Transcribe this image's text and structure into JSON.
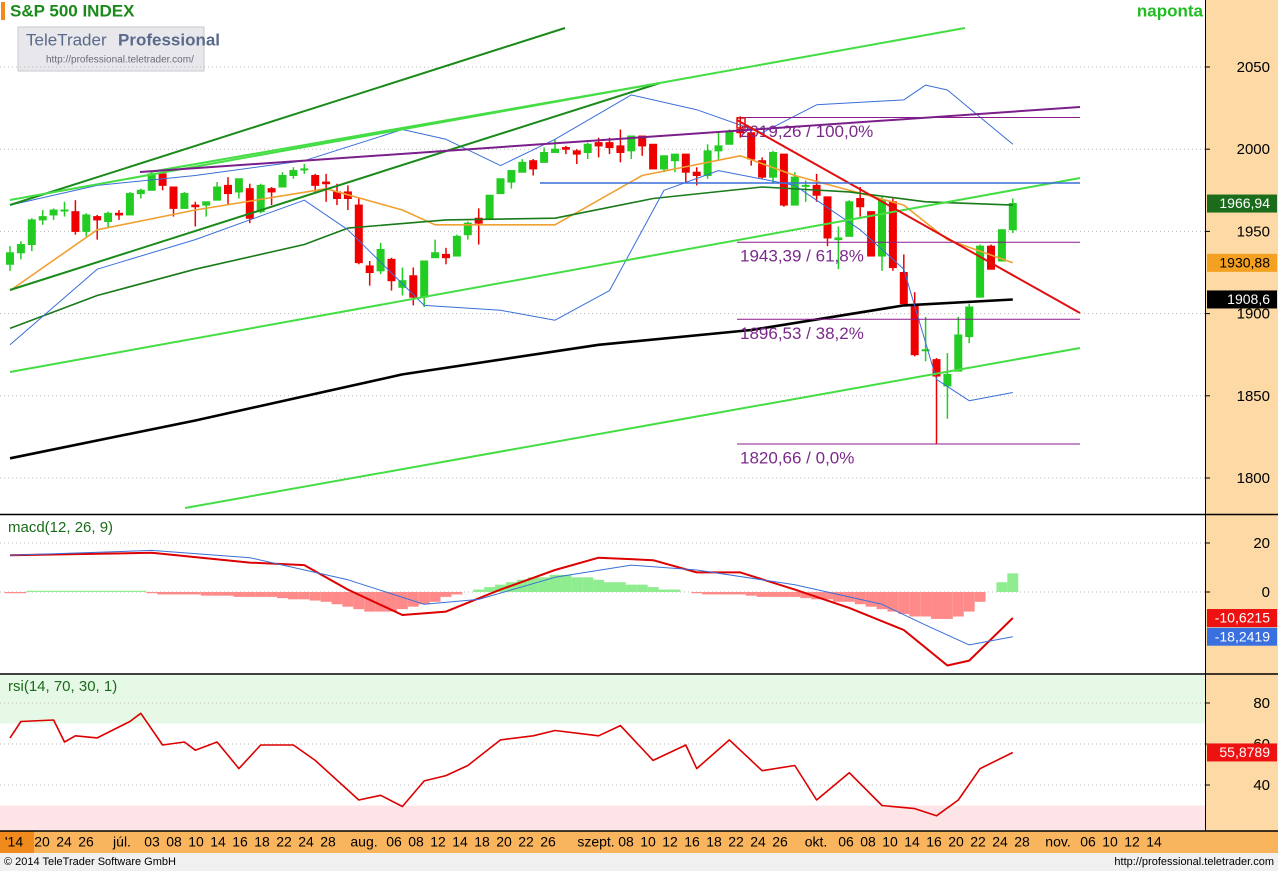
{
  "logo": {
    "brand": "TeleTrader",
    "product": "Professional",
    "url": "http://professional.teletrader.com/"
  },
  "footer": {
    "copyright": "© 2014 TeleTrader Software GmbH",
    "url": "http://professional.teletrader.com"
  },
  "chart_data": [
    {
      "type": "candlestick",
      "title": "S&P 500 INDEX",
      "subtitle": "naponta",
      "categories": [
        "06-16",
        "06-17",
        "06-18",
        "06-19",
        "06-20",
        "06-23",
        "06-24",
        "06-25",
        "06-26",
        "06-27",
        "06-30",
        "07-01",
        "07-02",
        "07-03",
        "07-07",
        "07-08",
        "07-09",
        "07-10",
        "07-11",
        "07-14",
        "07-15",
        "07-16",
        "07-17",
        "07-18",
        "07-21",
        "07-22",
        "07-23",
        "07-24",
        "07-25",
        "07-28",
        "07-29",
        "07-30",
        "07-31",
        "08-01",
        "08-04",
        "08-05",
        "08-06",
        "08-07",
        "08-08",
        "08-11",
        "08-12",
        "08-13",
        "08-14",
        "08-15",
        "08-18",
        "08-19",
        "08-20",
        "08-21",
        "08-22",
        "08-25",
        "08-26",
        "08-27",
        "08-28",
        "08-29",
        "09-02",
        "09-03",
        "09-04",
        "09-05",
        "09-08",
        "09-09",
        "09-10",
        "09-11",
        "09-12",
        "09-15",
        "09-16",
        "09-17",
        "09-18",
        "09-19",
        "09-22",
        "09-23",
        "09-24",
        "09-25",
        "09-26",
        "09-29",
        "09-30",
        "10-01",
        "10-02",
        "10-03",
        "10-06",
        "10-07",
        "10-08",
        "10-09",
        "10-10",
        "10-13",
        "10-14",
        "10-15",
        "10-16",
        "10-17",
        "10-20",
        "10-21",
        "10-22",
        "10-23",
        "10-24"
      ],
      "open": [
        1930,
        1937,
        1942,
        1957,
        1960,
        1963,
        1962,
        1950,
        1959,
        1956,
        1961,
        1960,
        1973,
        1975,
        1985,
        1977,
        1964,
        1966,
        1966,
        1969,
        1978,
        1974,
        1976,
        1962,
        1976,
        1977,
        1984,
        1988,
        1984,
        1980,
        1974,
        1974,
        1966,
        1929,
        1926,
        1933,
        1916,
        1923,
        1910,
        1934,
        1936,
        1935,
        1948,
        1958,
        1958,
        1973,
        1980,
        1986,
        1993,
        1992,
        1998,
        2001,
        1999,
        1998,
        2004,
        2004,
        2002,
        1999,
        2008,
        2003,
        1988,
        1993,
        1997,
        1986,
        1984,
        1999,
        2003,
        2012,
        2010,
        1993,
        1983,
        1997,
        1966,
        1978,
        1978,
        1971,
        1945,
        1947,
        1970,
        1962,
        1935,
        1968,
        1925,
        1905,
        1878,
        1872,
        1856,
        1865,
        1886,
        1910,
        1941,
        1932,
        1951
      ],
      "high": [
        1941,
        1944,
        1958,
        1963,
        1964,
        1968,
        1969,
        1961,
        1960,
        1962,
        1963,
        1974,
        1976,
        1986,
        1986,
        1977,
        1974,
        1968,
        1968,
        1980,
        1983,
        1982,
        1979,
        1979,
        1977,
        1986,
        1989,
        1991,
        1985,
        1985,
        1979,
        1978,
        1970,
        1932,
        1943,
        1934,
        1928,
        1928,
        1932,
        1945,
        1940,
        1948,
        1956,
        1964,
        1972,
        1982,
        1987,
        1994,
        1994,
        2001,
        2006,
        2002,
        2000,
        2004,
        2007,
        2007,
        2012,
        2008,
        2008,
        2003,
        1996,
        1997,
        1997,
        1989,
        2003,
        2011,
        2012,
        2020,
        2010,
        1995,
        1999,
        1997,
        1986,
        1981,
        1985,
        1971,
        1953,
        1969,
        1977,
        1962,
        1971,
        1970,
        1936,
        1913,
        1898,
        1873,
        1876,
        1898,
        1906,
        1942,
        1942,
        1951,
        1970
      ],
      "low": [
        1926,
        1933,
        1938,
        1954,
        1957,
        1959,
        1948,
        1947,
        1945,
        1952,
        1957,
        1960,
        1970,
        1975,
        1975,
        1959,
        1964,
        1953,
        1959,
        1969,
        1966,
        1970,
        1955,
        1961,
        1966,
        1977,
        1982,
        1985,
        1974,
        1968,
        1966,
        1963,
        1930,
        1917,
        1924,
        1914,
        1911,
        1905,
        1904,
        1934,
        1930,
        1935,
        1945,
        1942,
        1958,
        1973,
        1976,
        1986,
        1984,
        1992,
        1998,
        1997,
        1991,
        1994,
        1995,
        1997,
        1992,
        1994,
        1996,
        1988,
        1986,
        1986,
        1980,
        1978,
        1982,
        1993,
        2003,
        2007,
        1990,
        1982,
        1979,
        1965,
        1966,
        1968,
        1968,
        1941,
        1927,
        1947,
        1959,
        1935,
        1926,
        1926,
        1906,
        1874,
        1871,
        1820.66,
        1836,
        1865,
        1882,
        1910,
        1927,
        1932,
        1949
      ],
      "close": [
        1937,
        1942,
        1957,
        1959,
        1963,
        1963,
        1950,
        1960,
        1957,
        1961,
        1960,
        1973,
        1975,
        1985,
        1978,
        1964,
        1973,
        1965,
        1968,
        1977,
        1973,
        1982,
        1958,
        1978,
        1974,
        1984,
        1987,
        1988,
        1978,
        1979,
        1970,
        1970,
        1931,
        1925,
        1939,
        1920,
        1920,
        1910,
        1932,
        1937,
        1934,
        1947,
        1955,
        1955,
        1972,
        1982,
        1987,
        1992,
        1988,
        1998,
        2000,
        2000,
        1997,
        2003,
        2002,
        2001,
        1998,
        2008,
        2002,
        1988,
        1996,
        1997,
        1986,
        1984,
        1999,
        2002,
        2011,
        2010,
        1994,
        1983,
        1998,
        1966,
        1983,
        1978,
        1972,
        1946,
        1946,
        1968,
        1965,
        1935,
        1969,
        1928,
        1906,
        1875,
        1878,
        1862,
        1863,
        1887,
        1904,
        1941,
        1927,
        1951,
        1966.94
      ],
      "up_color": "#22cc22",
      "down_color": "#ee0000",
      "series": [
        {
          "color": "#f0a030",
          "width": 1.6,
          "x": [
            "06-16",
            "06-26",
            "07-10",
            "07-28",
            "08-06",
            "08-11",
            "08-26",
            "09-08",
            "09-19",
            "09-26",
            "10-10",
            "10-16",
            "10-24"
          ],
          "values": [
            1914,
            1951,
            1963,
            1976,
            1963,
            1954,
            1954,
            1984,
            1996,
            1984,
            1966,
            1945,
            1930.88
          ]
        },
        {
          "color": "#1a7a1a",
          "width": 1.6,
          "x": [
            "06-16",
            "06-26",
            "07-10",
            "07-24",
            "07-30",
            "08-12",
            "08-26",
            "09-09",
            "09-23",
            "10-03",
            "10-14",
            "10-24"
          ],
          "values": [
            1891,
            1911,
            1927,
            1942,
            1952,
            1957,
            1958,
            1970,
            1977,
            1974,
            1968,
            1966
          ]
        },
        {
          "color": "#000000",
          "width": 2.6,
          "x": [
            "06-16",
            "07-10",
            "08-06",
            "09-02",
            "09-22",
            "10-10",
            "10-24"
          ],
          "values": [
            1812,
            1835,
            1863,
            1881,
            1890,
            1905,
            1908.6
          ]
        },
        {
          "color": "#3a6fd8",
          "width": 1,
          "x": [
            "06-16",
            "06-26",
            "07-10",
            "07-24",
            "08-06",
            "08-12",
            "08-19",
            "08-26",
            "09-05",
            "09-15",
            "09-23",
            "09-30",
            "10-10",
            "10-14",
            "10-16",
            "10-24"
          ],
          "values": [
            1966,
            1978,
            1984,
            1993,
            2012,
            2006,
            1990,
            2006,
            2033,
            2024,
            2010,
            2027,
            2030,
            2039,
            2036,
            2003
          ]
        },
        {
          "color": "#3a6fd8",
          "width": 1,
          "x": [
            "06-16",
            "06-26",
            "07-10",
            "07-24",
            "07-30",
            "08-08",
            "08-19",
            "08-26",
            "09-03",
            "09-10",
            "09-17",
            "09-26",
            "10-06",
            "10-10",
            "10-15",
            "10-20",
            "10-24"
          ],
          "values": [
            1881,
            1927,
            1945,
            1969,
            1951,
            1905,
            1902,
            1896,
            1914,
            1975,
            1987,
            1978,
            1951,
            1927,
            1860,
            1847,
            1852
          ]
        }
      ],
      "fib_levels": [
        {
          "value": 2019.26,
          "label": "2019,26 / 100,0%"
        },
        {
          "value": 1943.39,
          "label": "1943,39 / 61,8%"
        },
        {
          "value": 1896.53,
          "label": "1896,53 / 38,2%"
        },
        {
          "value": 1820.66,
          "label": "1820,66 / 0,0%"
        }
      ],
      "value_boxes": [
        {
          "value": 1966.94,
          "label": "1966,94",
          "color": "#1a6b1a",
          "text_color": "#ffffff"
        },
        {
          "value": 1930.88,
          "label": "1930,88",
          "color": "#f4a020",
          "text_color": "#000000"
        },
        {
          "value": 1908.6,
          "label": "1908,6",
          "color": "#000000",
          "text_color": "#ffffff"
        }
      ],
      "ylim": [
        1778.71,
        2090.75
      ],
      "yticks": [
        1800,
        1850,
        1900,
        1950,
        2000,
        2050
      ],
      "grid": true,
      "x_labels": [
        "'14",
        "20",
        "24",
        "26",
        "júl.",
        "03",
        "08",
        "10",
        "14",
        "16",
        "18",
        "22",
        "24",
        "28",
        "aug.",
        "06",
        "08",
        "12",
        "14",
        "18",
        "20",
        "22",
        "26",
        "szept.",
        "08",
        "10",
        "12",
        "16",
        "18",
        "22",
        "24",
        "26",
        "okt.",
        "06",
        "08",
        "10",
        "14",
        "16",
        "20",
        "22",
        "24",
        "28",
        "nov.",
        "06",
        "10",
        "12",
        "14"
      ]
    },
    {
      "type": "macd",
      "title": "macd(12, 26, 9)",
      "histogram": {
        "positive_color": "#8fec8f",
        "negative_color": "#ff8a8a",
        "values": [
          -0.5,
          -0.5,
          0.5,
          0.5,
          0.5,
          0.5,
          0.5,
          0.5,
          0.5,
          0.5,
          0.5,
          0.5,
          0.5,
          -0.5,
          -1,
          -1,
          -1,
          -1,
          -1.5,
          -1.5,
          -1.5,
          -2,
          -2,
          -2,
          -2,
          -2.5,
          -3,
          -3,
          -3.5,
          -4,
          -5,
          -6,
          -7,
          -8,
          -8,
          -8,
          -7,
          -6,
          -5,
          -4,
          -2,
          -1,
          0,
          1,
          2,
          3,
          4,
          5,
          6,
          6,
          7,
          7,
          6,
          6,
          5,
          4,
          4,
          3,
          3,
          2,
          1,
          1,
          0,
          -0.5,
          -1,
          -1,
          -1,
          -1,
          -1.5,
          -2,
          -2,
          -2,
          -2,
          -2.5,
          -3,
          -3,
          -4,
          -4,
          -5,
          -6,
          -7,
          -8,
          -9,
          -10,
          -10,
          -11,
          -11,
          -10,
          -8,
          -4,
          0,
          4,
          7.6
        ]
      },
      "series": [
        {
          "color": "#dd0000",
          "width": 2,
          "x": [
            "06-16",
            "07-03",
            "07-17",
            "07-24",
            "07-30",
            "08-06",
            "08-12",
            "08-19",
            "08-26",
            "09-02",
            "09-09",
            "09-15",
            "09-19",
            "09-26",
            "10-03",
            "10-10",
            "10-16",
            "10-20",
            "10-24"
          ],
          "values": [
            15,
            16,
            12,
            11,
            1,
            -9.4,
            -8,
            1,
            9,
            14,
            13,
            8,
            8,
            1,
            -6.5,
            -15.5,
            -30,
            -28,
            -10.6215
          ]
        },
        {
          "color": "#3a6fd8",
          "width": 1,
          "x": [
            "06-16",
            "07-03",
            "07-17",
            "07-30",
            "08-08",
            "08-15",
            "08-26",
            "09-05",
            "09-15",
            "09-26",
            "10-08",
            "10-14",
            "10-20",
            "10-24"
          ],
          "values": [
            15,
            17,
            14,
            5,
            -5,
            -3,
            6,
            11,
            9,
            3,
            -5,
            -13.5,
            -21.6,
            -18.2419
          ]
        }
      ],
      "value_boxes": [
        {
          "value": -10.6215,
          "label": "-10,6215",
          "color": "#ee1111",
          "text_color": "#ffffff"
        },
        {
          "value": -18.2419,
          "label": "-18,2419",
          "color": "#3a6fe0",
          "text_color": "#ffffff"
        }
      ],
      "ylim": [
        -32.65,
        31.02
      ],
      "yticks": [
        0,
        20
      ],
      "grid": true
    },
    {
      "type": "line",
      "title": "rsi(14, 70, 30, 1)",
      "overbought": 70,
      "oversold": 30,
      "series": [
        {
          "color": "#dd0000",
          "width": 1.6,
          "x": [
            "06-16",
            "06-17",
            "06-20",
            "06-23",
            "06-24",
            "06-26",
            "07-01",
            "07-02",
            "07-07",
            "07-09",
            "07-10",
            "07-14",
            "07-16",
            "07-18",
            "07-23",
            "07-25",
            "07-31",
            "08-04",
            "08-06",
            "08-08",
            "08-12",
            "08-14",
            "08-19",
            "08-22",
            "08-26",
            "09-02",
            "09-04",
            "09-09",
            "09-12",
            "09-15",
            "09-18",
            "09-23",
            "09-26",
            "09-30",
            "10-03",
            "10-08",
            "10-13",
            "10-15",
            "10-17",
            "10-21",
            "10-24"
          ],
          "values": [
            63,
            71,
            71.7,
            61,
            64,
            63,
            71,
            75,
            59.5,
            61,
            57,
            61,
            48,
            59.5,
            59.5,
            52,
            32.7,
            35,
            29.5,
            42,
            44.6,
            49.5,
            62,
            64,
            66.6,
            64,
            69,
            52,
            59.5,
            48,
            62,
            47,
            49.5,
            32.7,
            46,
            30,
            28.5,
            25,
            32.7,
            48,
            55.8789
          ]
        }
      ],
      "value_boxes": [
        {
          "value": 55.8789,
          "label": "55,8789",
          "color": "#ee1111",
          "text_color": "#ffffff"
        }
      ],
      "ylim": [
        18.05,
        93.66
      ],
      "yticks": [
        40,
        60,
        80
      ],
      "grid": true
    }
  ]
}
